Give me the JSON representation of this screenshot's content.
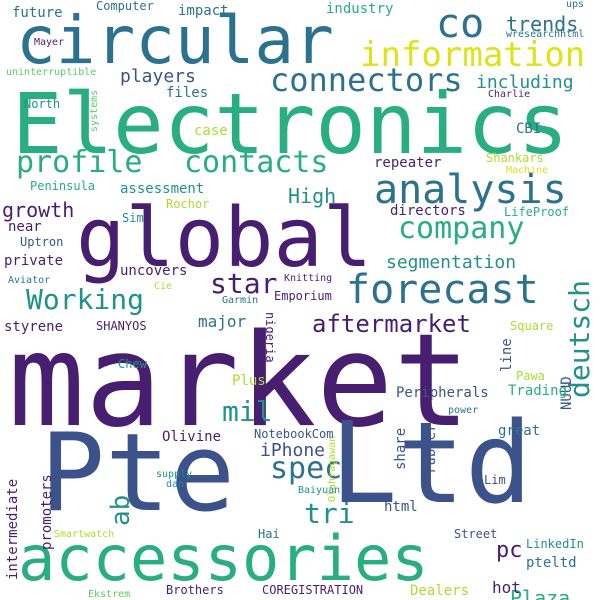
{
  "words": {
    "market": "market",
    "pte": "Pte",
    "ltd": "Ltd",
    "electronics": "Electronics",
    "circular": "circular",
    "global": "global",
    "accessories": "accessories",
    "analysis": "analysis",
    "forecast": "forecast",
    "information": "information",
    "co": "co",
    "connectors": "connectors",
    "profile": "profile",
    "contacts": "contacts",
    "company": "company",
    "working": "Working",
    "deutsch": "deutsch",
    "aftermarket": "aftermarket",
    "spec": "spec",
    "tri": "tri",
    "mil": "mil",
    "star": "star",
    "ab": "ab",
    "pc": "pc",
    "high": "High",
    "growth": "growth",
    "segmentation": "segmentation",
    "trends": "trends",
    "including": "including",
    "players": "players",
    "files": "files",
    "future": "future",
    "computer": "Computer",
    "impact": "impact",
    "industry": "industry",
    "north": "North",
    "cbi": "CBI",
    "case": "case",
    "repeater": "repeater",
    "assessment": "assessment",
    "directors": "directors",
    "near": "near",
    "uptron": "Uptron",
    "private": "private",
    "uncovers": "uncovers",
    "major": "major",
    "styrene": "styrene",
    "shanyos": "SHANYOS",
    "iphone": "iPhone",
    "notebookcom": "NotebookCom",
    "olivine": "Olivine",
    "plaza": "Plaza",
    "great": "great",
    "line": "line",
    "nuud": "NUUD",
    "trading": "Trading",
    "peripherals": "Peripherals",
    "rubber": "rubber",
    "share": "share",
    "html": "html",
    "street": "Street",
    "hot": "hot",
    "pteltd": "pteltd",
    "linkedin": "LinkedIn",
    "dealers": "Dealers",
    "coregistration": "COREGISTRATION",
    "brothers": "Brothers",
    "hai": "Hai",
    "lim": "Lim",
    "intermediate": "intermediate",
    "promoters": "promoters",
    "emporium": "Emporium",
    "lifeproof": "LifeProof",
    "peninsula": "Peninsula",
    "shankars": "Shankars",
    "rochor": "Rochor",
    "sim": "Sim",
    "chew": "Chew",
    "plus": "Plus",
    "pawa": "Pawa",
    "square": "Square",
    "nigeria": "nigeria",
    "baiyuan": "Baiyuan",
    "olahragawan": "Olahragawan",
    "supply": "supply",
    "dan": "dan",
    "smartwatch": "Smartwatch",
    "ekstrem": "Ekstrem",
    "power": "power",
    "knitting": "Knitting",
    "garmin": "Garmin",
    "cie": "Cie",
    "aviator": "Aviator",
    "machine": "Machine",
    "charlie": "Charlie",
    "wresearchhtml": "wresearchhtml",
    "ups": "ups",
    "mayer": "Mayer",
    "uninterruptible": "uninterruptible",
    "systems": "systems"
  }
}
